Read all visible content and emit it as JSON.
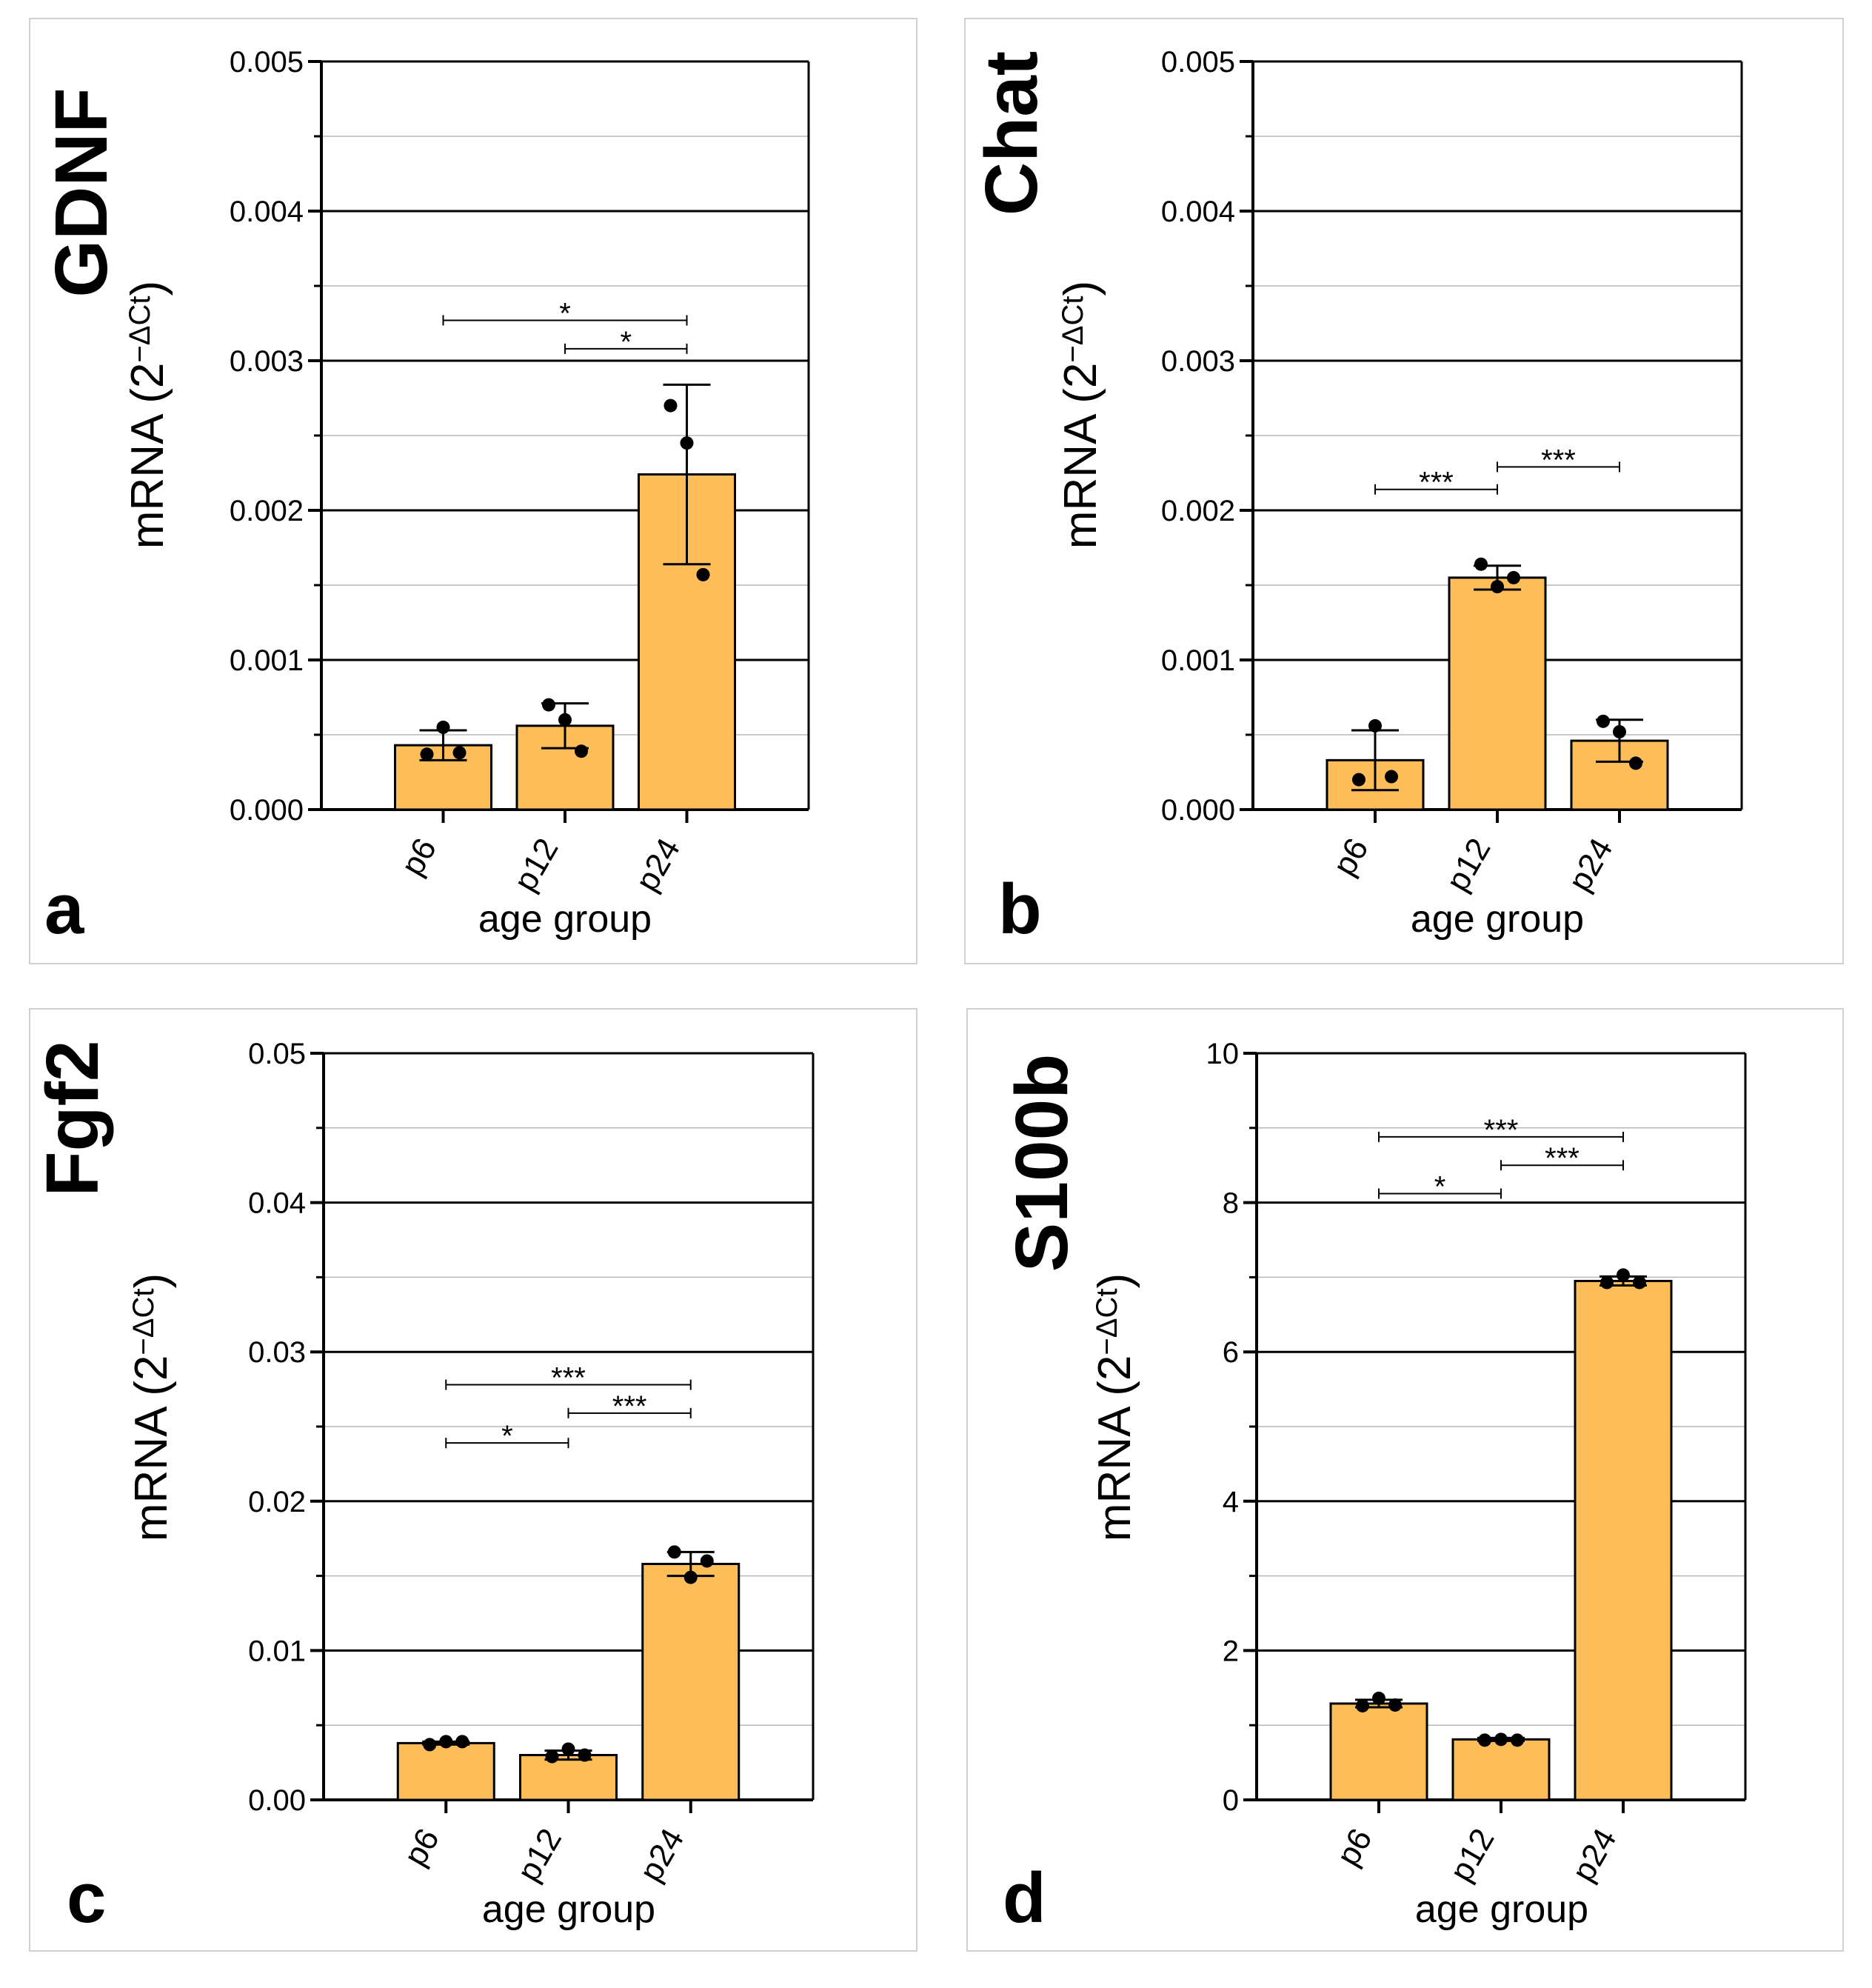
{
  "colors": {
    "bar_fill": "#FDBE5A",
    "axis": "#000000",
    "major_grid": "#000000",
    "minor_grid": "#b8b8b8",
    "panel_border": "#d0d0d0",
    "background": "#ffffff"
  },
  "common": {
    "xlabel": "age group",
    "ylabel_prefix": "mRNA (2",
    "ylabel_sup": "−ΔCt",
    "ylabel_suffix": ")"
  },
  "chart_data": [
    {
      "type": "bar",
      "panel_letter": "a",
      "gene": "GDNF",
      "categories": [
        "p6",
        "p12",
        "p24"
      ],
      "values": [
        0.00043,
        0.00056,
        0.00224
      ],
      "sd": [
        0.0001,
        0.00015,
        0.0006
      ],
      "points": [
        [
          0.00037,
          0.00055,
          0.00038
        ],
        [
          0.0007,
          0.0006,
          0.00039
        ],
        [
          0.0027,
          0.00245,
          0.00157
        ]
      ],
      "ylim": [
        0,
        0.005
      ],
      "yticks": [
        0,
        0.001,
        0.002,
        0.003,
        0.004,
        0.005
      ],
      "ytick_labels": [
        "0.000",
        "0.001",
        "0.002",
        "0.003",
        "0.004",
        "0.005"
      ],
      "xlabel": "age group",
      "ylabel": "mRNA (2−ΔCt)",
      "significance": [
        {
          "from": "p6",
          "to": "p24",
          "value": 0.00327,
          "label": "*"
        },
        {
          "from": "p12",
          "to": "p24",
          "value": 0.00308,
          "label": "*"
        }
      ]
    },
    {
      "type": "bar",
      "panel_letter": "b",
      "gene": "Chat",
      "categories": [
        "p6",
        "p12",
        "p24"
      ],
      "values": [
        0.00033,
        0.00155,
        0.00046
      ],
      "sd": [
        0.0002,
        8e-05,
        0.00014
      ],
      "points": [
        [
          0.0002,
          0.00056,
          0.00022
        ],
        [
          0.00164,
          0.00149,
          0.00155
        ],
        [
          0.00059,
          0.00052,
          0.00031
        ]
      ],
      "ylim": [
        0,
        0.005
      ],
      "yticks": [
        0,
        0.001,
        0.002,
        0.003,
        0.004,
        0.005
      ],
      "ytick_labels": [
        "0.000",
        "0.001",
        "0.002",
        "0.003",
        "0.004",
        "0.005"
      ],
      "xlabel": "age group",
      "ylabel": "mRNA (2−ΔCt)",
      "significance": [
        {
          "from": "p6",
          "to": "p12",
          "value": 0.00214,
          "label": "***"
        },
        {
          "from": "p12",
          "to": "p24",
          "value": 0.00229,
          "label": "***"
        }
      ]
    },
    {
      "type": "bar",
      "panel_letter": "c",
      "gene": "Fgf2",
      "categories": [
        "p6",
        "p12",
        "p24"
      ],
      "values": [
        0.0038,
        0.003,
        0.0158
      ],
      "sd": [
        0.0001,
        0.0003,
        0.0008
      ],
      "points": [
        [
          0.0037,
          0.0039,
          0.0039
        ],
        [
          0.0029,
          0.0034,
          0.003
        ],
        [
          0.0166,
          0.0149,
          0.016
        ]
      ],
      "ylim": [
        0,
        0.05
      ],
      "yticks": [
        0,
        0.01,
        0.02,
        0.03,
        0.04,
        0.05
      ],
      "ytick_labels": [
        "0.00",
        "0.01",
        "0.02",
        "0.03",
        "0.04",
        "0.05"
      ],
      "xlabel": "age group",
      "ylabel": "mRNA (2−ΔCt)",
      "significance": [
        {
          "from": "p6",
          "to": "p24",
          "value": 0.0278,
          "label": "***"
        },
        {
          "from": "p12",
          "to": "p24",
          "value": 0.0259,
          "label": "***"
        },
        {
          "from": "p6",
          "to": "p12",
          "value": 0.0239,
          "label": "*"
        }
      ]
    },
    {
      "type": "bar",
      "panel_letter": "d",
      "gene": "S100b",
      "categories": [
        "p6",
        "p12",
        "p24"
      ],
      "values": [
        1.29,
        0.81,
        6.95
      ],
      "sd": [
        0.05,
        0.02,
        0.06
      ],
      "points": [
        [
          1.26,
          1.36,
          1.27
        ],
        [
          0.8,
          0.81,
          0.8
        ],
        [
          6.93,
          7.03,
          6.93
        ]
      ],
      "ylim": [
        0,
        10
      ],
      "yticks": [
        0,
        2,
        4,
        6,
        8,
        10
      ],
      "ytick_labels": [
        "0",
        "2",
        "4",
        "6",
        "8",
        "10"
      ],
      "xlabel": "age group",
      "ylabel": "mRNA (2−ΔCt)",
      "significance": [
        {
          "from": "p6",
          "to": "p24",
          "value": 8.88,
          "label": "***"
        },
        {
          "from": "p12",
          "to": "p24",
          "value": 8.5,
          "label": "***"
        },
        {
          "from": "p6",
          "to": "p12",
          "value": 8.12,
          "label": "*"
        }
      ]
    }
  ]
}
